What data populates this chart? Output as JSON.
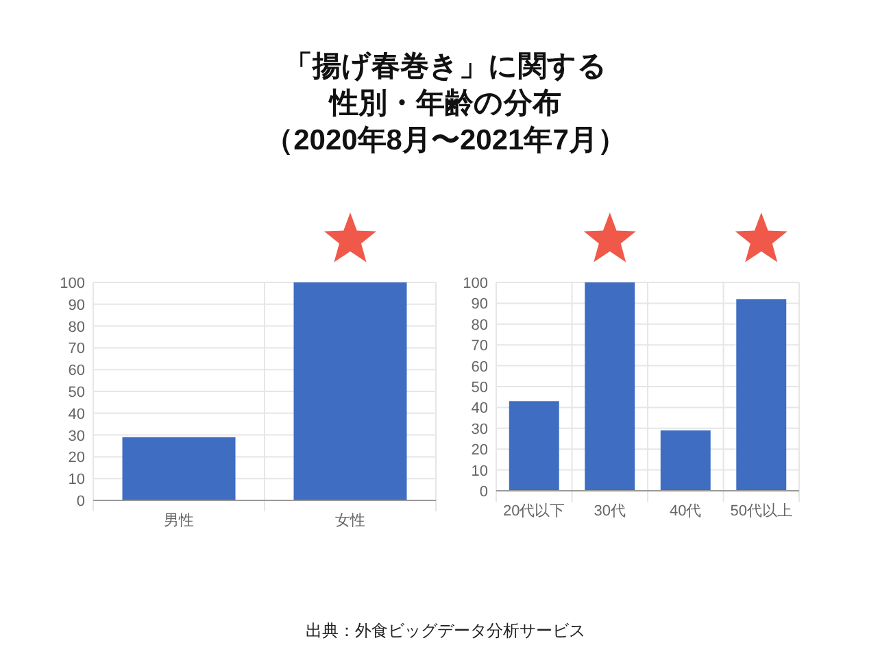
{
  "chart_data": [
    {
      "type": "bar",
      "title": "「揚げ春巻き」に関する性別・年齢の分布",
      "subtitle": "（2020年8月〜2021年7月）",
      "annotations": [
        "出典：外食ビッグデータ分析サービス"
      ],
      "categories": [
        "男性",
        "女性"
      ],
      "values": [
        29,
        100
      ],
      "color": "#3e6dc2",
      "ylim": [
        0,
        100
      ],
      "yticks": [
        0,
        10,
        20,
        30,
        40,
        50,
        60,
        70,
        80,
        90,
        100
      ],
      "grid": true
    },
    {
      "type": "bar",
      "categories": [
        "20代以下",
        "30代",
        "40代",
        "50代以上"
      ],
      "values": [
        43,
        100,
        29,
        92
      ],
      "color": "#3e6dc2",
      "ylim": [
        0,
        100
      ],
      "yticks": [
        0,
        10,
        20,
        30,
        40,
        50,
        60,
        70,
        80,
        90,
        100
      ],
      "grid": true
    }
  ]
}
